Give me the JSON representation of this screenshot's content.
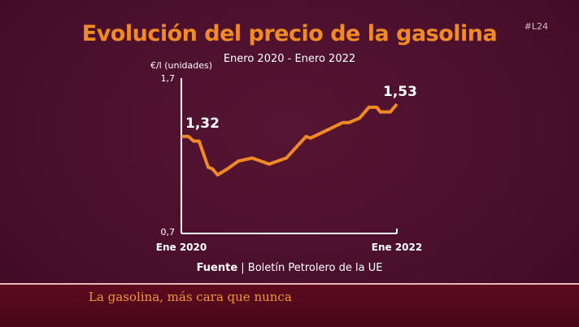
{
  "header": {
    "title": "Evolución del precio de la gasolina",
    "subtitle": "Enero 2020 - Enero 2022",
    "channel_logo": "#L24"
  },
  "chart_data": {
    "type": "line",
    "title": "Evolución del precio de la gasolina",
    "subtitle": "Enero 2020 - Enero 2022",
    "ylabel": "€/l (unidades)",
    "ylim": [
      0.7,
      1.7
    ],
    "xlim": [
      "2020-01-01",
      "2022-01-01"
    ],
    "y_ticks": [
      "1,7",
      "0,7"
    ],
    "x_ticks": [
      "Ene 2020",
      "Ene 2022"
    ],
    "grid": false,
    "line_color": "#f08a24",
    "series": [
      {
        "x": [
          "2020-01-01",
          "2020-01-25",
          "2020-02-12",
          "2020-03-01",
          "2020-04-01",
          "2020-04-15",
          "2020-05-03",
          "2020-06-06",
          "2020-07-12",
          "2020-08-28",
          "2020-10-25",
          "2020-12-22",
          "2021-02-27",
          "2021-03-15",
          "2021-07-01",
          "2021-07-22",
          "2021-08-28",
          "2021-09-28",
          "2021-10-25",
          "2021-11-06",
          "2021-12-10",
          "2022-01-01"
        ],
        "values": [
          1.32,
          1.32,
          1.29,
          1.29,
          1.12,
          1.11,
          1.07,
          1.11,
          1.16,
          1.18,
          1.14,
          1.18,
          1.32,
          1.31,
          1.41,
          1.41,
          1.44,
          1.51,
          1.51,
          1.48,
          1.48,
          1.53
        ]
      }
    ],
    "annotations": [
      {
        "text": "1,32",
        "x": "2020-01-01",
        "value": 1.32
      },
      {
        "text": "1,53",
        "x": "2022-01-01",
        "value": 1.53
      }
    ]
  },
  "footer": {
    "source_label": "Fuente",
    "source_text": "| Boletín Petrolero de la UE"
  },
  "ticker": {
    "headline": "La gasolina, más cara que nunca"
  }
}
